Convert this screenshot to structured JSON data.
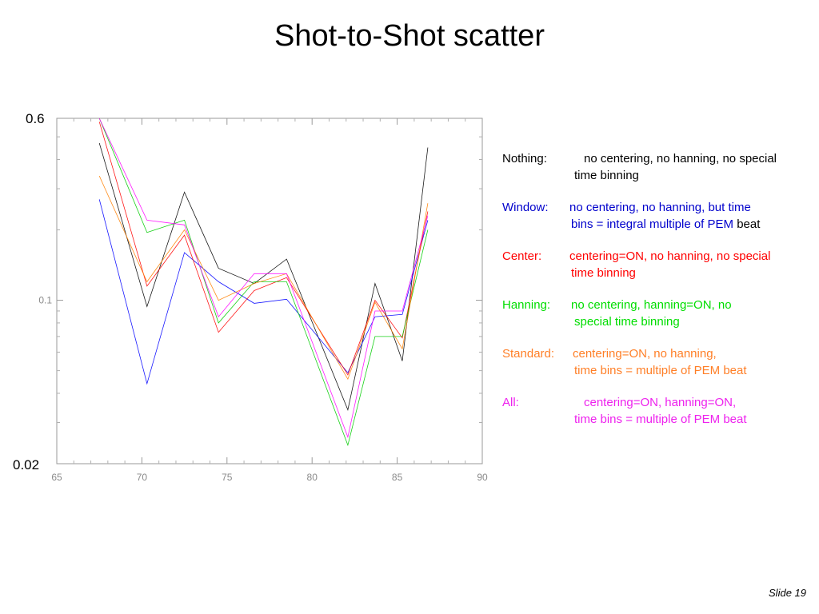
{
  "slide": {
    "title": "Shot-to-Shot scatter",
    "number_label": "Slide 19"
  },
  "chart_data": {
    "type": "line",
    "title": "",
    "xlabel": "",
    "ylabel": "",
    "xlim": [
      65,
      90
    ],
    "ylim": [
      0.02,
      0.6
    ],
    "yscale": "log",
    "x_ticks": [
      "65",
      "70",
      "75",
      "80",
      "85",
      "90"
    ],
    "y_tick_labels": {
      "top": "0.6",
      "middle": "0.1",
      "bottom": "0.02"
    },
    "grid": false,
    "x": [
      67.5,
      70.3,
      72.5,
      74.5,
      76.6,
      78.5,
      82.1,
      83.7,
      85.3,
      86.8
    ],
    "series": [
      {
        "name": "Nothing",
        "color": "#000000",
        "values": [
          0.47,
          0.094,
          0.29,
          0.137,
          0.118,
          0.15,
          0.034,
          0.118,
          0.055,
          0.45
        ]
      },
      {
        "name": "Window",
        "color": "#0000ff",
        "values": [
          0.27,
          0.044,
          0.16,
          0.12,
          0.097,
          0.101,
          0.049,
          0.085,
          0.087,
          0.22
        ]
      },
      {
        "name": "Center",
        "color": "#ff0000",
        "values": [
          0.58,
          0.115,
          0.19,
          0.073,
          0.11,
          0.125,
          0.048,
          0.1,
          0.069,
          0.24
        ]
      },
      {
        "name": "Hanning",
        "color": "#00cc00",
        "values": [
          0.6,
          0.195,
          0.22,
          0.08,
          0.12,
          0.12,
          0.024,
          0.07,
          0.07,
          0.2
        ]
      },
      {
        "name": "Standard",
        "color": "#ff8000",
        "values": [
          0.34,
          0.12,
          0.2,
          0.1,
          0.118,
          0.13,
          0.046,
          0.098,
          0.062,
          0.26
        ]
      },
      {
        "name": "All",
        "color": "#ff00ff",
        "values": [
          0.6,
          0.22,
          0.21,
          0.085,
          0.13,
          0.13,
          0.026,
          0.09,
          0.09,
          0.23
        ]
      }
    ]
  },
  "legend": [
    {
      "label": "Nothing:",
      "line1": "no centering, no hanning, no special",
      "line2": "time binning",
      "color": "#000000",
      "tail": ""
    },
    {
      "label": "Window:",
      "line1": "no centering, no hanning, but time",
      "line2": "bins = integral multiple of PEM",
      "color": "#0000cc",
      "tail": "beat"
    },
    {
      "label": "Center:",
      "line1": "centering=ON, no hanning, no special",
      "line2": "time binning",
      "color": "#ff0000",
      "tail": ""
    },
    {
      "label": "Hanning:",
      "line1": "no centering, hanning=ON, no",
      "line2": "special time binning",
      "color": "#00dd00",
      "tail": ""
    },
    {
      "label": "Standard:",
      "line1": "centering=ON, no hanning,",
      "line2": "time bins = multiple of PEM beat",
      "color": "#ff7f27",
      "tail": ""
    },
    {
      "label": "All:",
      "line1": "centering=ON, hanning=ON,",
      "line2": "time bins = multiple of PEM beat",
      "color": "#ee22ee",
      "tail": ""
    }
  ]
}
